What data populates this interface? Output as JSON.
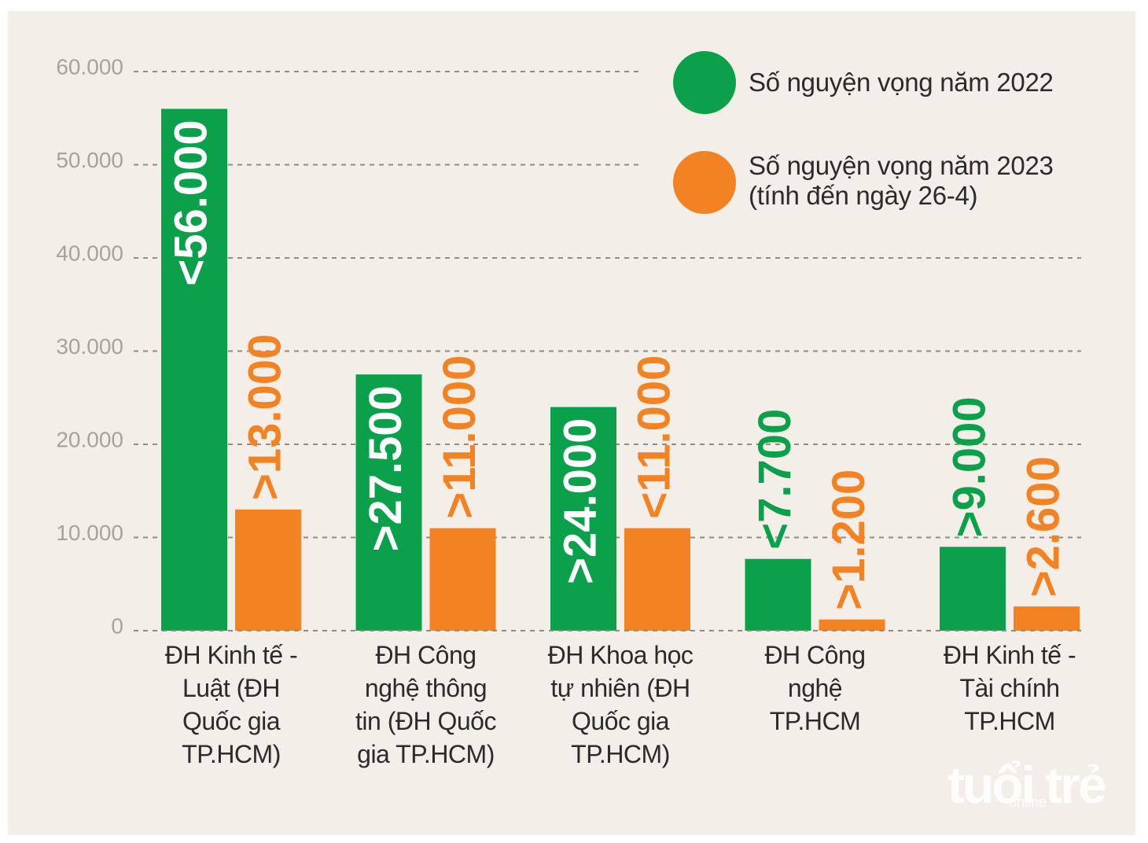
{
  "chart_data": {
    "type": "bar",
    "categories": [
      "ĐH Kinh tế - Luật (ĐH Quốc gia TP.HCM)",
      "ĐH Công nghệ thông tin (ĐH Quốc gia TP.HCM)",
      "ĐH Khoa học tự nhiên (ĐH Quốc gia TP.HCM)",
      "ĐH Công nghệ TP.HCM",
      "ĐH Kinh tế - Tài chính TP.HCM"
    ],
    "series": [
      {
        "name": "Số nguyện vọng năm 2022",
        "color": "#0ba14b",
        "values": [
          56000,
          27500,
          24000,
          7700,
          9000
        ],
        "value_labels": [
          "<56.000",
          ">27.500",
          ">24.000",
          "<7.700",
          ">9.000"
        ]
      },
      {
        "name": "Số nguyện vọng năm 2023 (tính đến ngày 26-4)",
        "color": "#f28222",
        "values": [
          13000,
          11000,
          11000,
          1200,
          2600
        ],
        "value_labels": [
          ">13.000",
          ">11.000",
          "<11.000",
          ">1.200",
          ">2.600"
        ]
      }
    ],
    "ylim": [
      0,
      60000
    ],
    "yticks": [
      0,
      {
        "value": 10000,
        "label": "10.000"
      },
      {
        "value": 20000,
        "label": "20.000"
      },
      {
        "value": 30000,
        "label": "30.000"
      },
      {
        "value": 40000,
        "label": "40.000"
      },
      {
        "value": 50000,
        "label": "50.000"
      },
      {
        "value": 60000,
        "label": "60.000"
      }
    ],
    "grid": true
  },
  "watermark": {
    "logo": "tuổi trẻ",
    "sub": "online"
  }
}
